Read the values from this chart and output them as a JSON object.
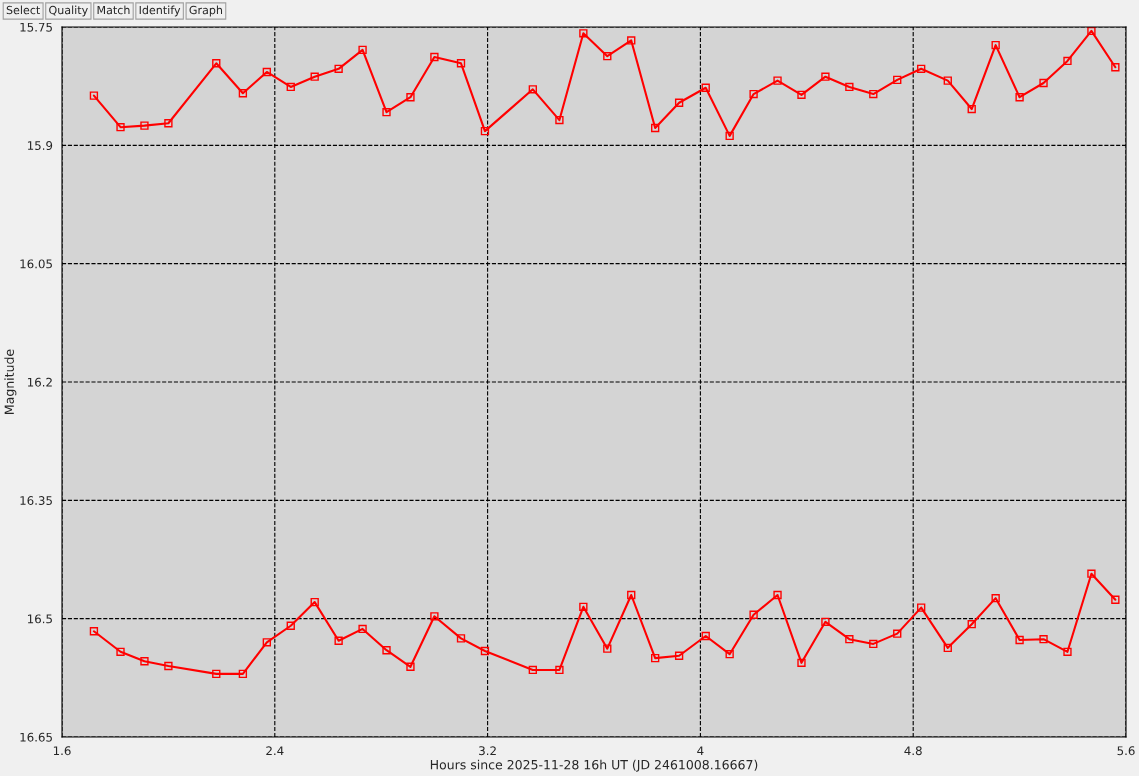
{
  "chart_data": {
    "type": "line",
    "xlabel": "Hours since 2025-11-28 16h UT (JD 2461008.16667)",
    "ylabel": "Magnitude",
    "annotations": [
      "Select",
      "Quality",
      "Match",
      "Identify",
      "Graph"
    ],
    "x": [
      1.72,
      1.82,
      1.91,
      2.0,
      2.18,
      2.28,
      2.37,
      2.46,
      2.55,
      2.64,
      2.73,
      2.82,
      2.91,
      3.0,
      3.1,
      3.19,
      3.37,
      3.47,
      3.56,
      3.65,
      3.74,
      3.83,
      3.92,
      4.02,
      4.11,
      4.2,
      4.29,
      4.38,
      4.47,
      4.56,
      4.65,
      4.74,
      4.83,
      4.93,
      5.02,
      5.11,
      5.2,
      5.29,
      5.38,
      5.47,
      5.56
    ],
    "series": [
      {
        "color": "#ff0000",
        "values": [
          15.837,
          15.877,
          15.875,
          15.872,
          15.796,
          15.834,
          15.807,
          15.826,
          15.813,
          15.803,
          15.779,
          15.858,
          15.839,
          15.788,
          15.796,
          15.882,
          15.829,
          15.868,
          15.758,
          15.787,
          15.767,
          15.878,
          15.846,
          15.827,
          15.888,
          15.835,
          15.818,
          15.836,
          15.813,
          15.826,
          15.835,
          15.817,
          15.803,
          15.818,
          15.854,
          15.773,
          15.839,
          15.821,
          15.793,
          15.755,
          15.801
        ]
      },
      {
        "color": "#ff0000",
        "values": [
          16.516,
          16.542,
          16.554,
          16.56,
          16.57,
          16.57,
          16.53,
          16.509,
          16.479,
          16.528,
          16.513,
          16.54,
          16.561,
          16.497,
          16.525,
          16.541,
          16.565,
          16.565,
          16.485,
          16.538,
          16.47,
          16.55,
          16.547,
          16.522,
          16.545,
          16.495,
          16.47,
          16.556,
          16.504,
          16.526,
          16.532,
          16.519,
          16.486,
          16.537,
          16.507,
          16.474,
          16.527,
          16.526,
          16.542,
          16.443,
          16.476
        ]
      }
    ],
    "xlim": [
      1.6,
      5.6
    ],
    "xticks": [
      1.6,
      2.4,
      3.2,
      4,
      4.8,
      5.6
    ],
    "ylim": [
      16.65,
      15.75
    ],
    "yticks": [
      15.75,
      15.9,
      16.05,
      16.2,
      16.35,
      16.5,
      16.65
    ],
    "grid": true,
    "marker": "square",
    "line_style": "solid"
  }
}
